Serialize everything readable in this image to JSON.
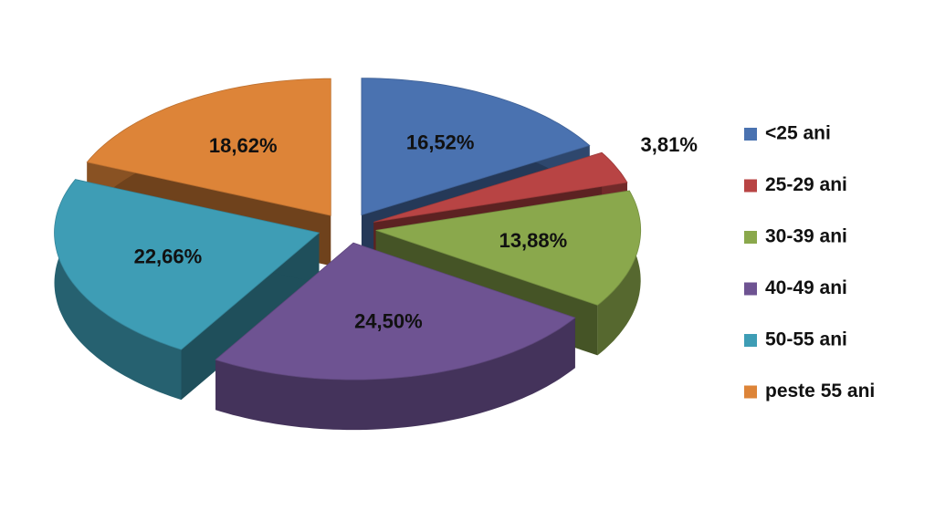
{
  "chart_data": {
    "type": "pie",
    "categories": [
      "<25 ani",
      "25-29 ani",
      "30-39 ani",
      "40-49 ani",
      "50-55 ani",
      "peste 55 ani"
    ],
    "values": [
      16.52,
      3.81,
      13.88,
      24.5,
      22.66,
      18.62
    ],
    "value_labels": [
      "16,52%",
      "3,81%",
      "13,88%",
      "24,50%",
      "22,66%",
      "18,62%"
    ],
    "colors": [
      "#4a72b0",
      "#b84444",
      "#8aa84c",
      "#6e5392",
      "#3e9db5",
      "#dd8438"
    ],
    "legend": "right"
  }
}
